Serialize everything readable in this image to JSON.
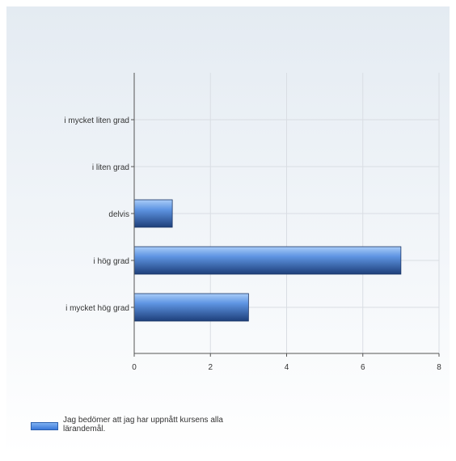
{
  "chart_data": {
    "type": "bar",
    "orientation": "horizontal",
    "categories": [
      "i mycket liten grad",
      "i liten grad",
      "delvis",
      "i hög grad",
      "i mycket hög grad"
    ],
    "series": [
      {
        "name": "Jag bedömer att jag har uppnått kursens alla lärandemål.",
        "values": [
          0,
          0,
          1,
          7,
          3
        ]
      }
    ],
    "xlim": [
      0,
      8
    ],
    "xticks": [
      "0",
      "2",
      "4",
      "6",
      "8"
    ],
    "grid": true,
    "legend_position": "bottom-left",
    "colors": {
      "bar_light": "#86b6f5",
      "bar_dark": "#1d3f7a",
      "grid": "#d9dde3",
      "axis": "#555555"
    }
  }
}
